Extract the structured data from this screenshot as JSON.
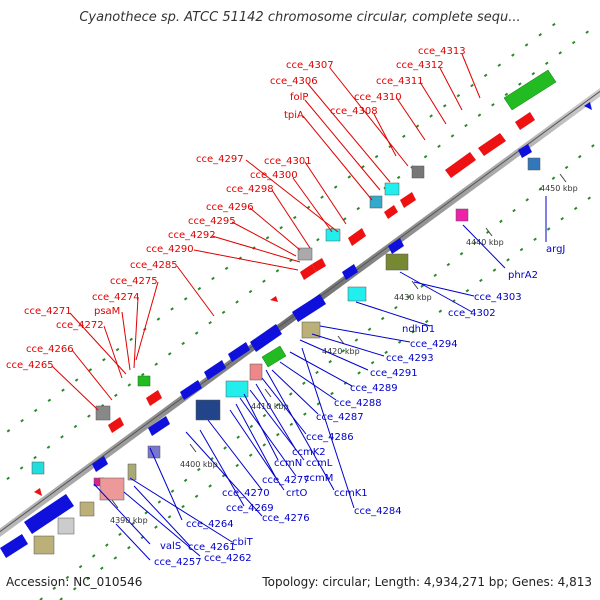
{
  "title": "Cyanothece sp. ATCC 51142 chromosome circular, complete sequ...",
  "footer": {
    "accession": "Accession: NC_010546",
    "summary": "Topology: circular; Length: 4,934,271 bp; Genes: 4,813"
  },
  "ticks": [
    "4390 kbp",
    "4400 kbp",
    "4410 kbp",
    "4420 kbp",
    "4430 kbp",
    "4440 kbp",
    "4450 kbp"
  ],
  "red_labels": [
    "cce_4313",
    "cce_4312",
    "cce_4307",
    "cce_4311",
    "cce_4306",
    "folP",
    "cce_4310",
    "cce_4308",
    "tpiA",
    "cce_4297",
    "cce_4301",
    "cce_4300",
    "cce_4298",
    "cce_4296",
    "cce_4295",
    "cce_4292",
    "cce_4290",
    "cce_4285",
    "cce_4275",
    "cce_4274",
    "psaM",
    "cce_4271",
    "cce_4272",
    "cce_4266",
    "cce_4265"
  ],
  "blue_labels": [
    "argJ",
    "phrA2",
    "cce_4303",
    "cce_4302",
    "ndhD1",
    "cce_4294",
    "cce_4293",
    "cce_4291",
    "cce_4289",
    "cce_4288",
    "cce_4287",
    "cce_4286",
    "ccmK2",
    "ccmL",
    "ccmN",
    "ccmM",
    "cce_4277",
    "crtO",
    "ccmK1",
    "cce_4270",
    "cce_4284",
    "cce_4269",
    "cce_4276",
    "cce_4264",
    "cbiT",
    "valS",
    "cce_4261",
    "cce_4262",
    "cce_4257"
  ],
  "colors": {
    "forward_gene": "#ee1111",
    "reverse_gene": "#1010dd",
    "rna": "#22bb22",
    "backbone": "#888888"
  }
}
